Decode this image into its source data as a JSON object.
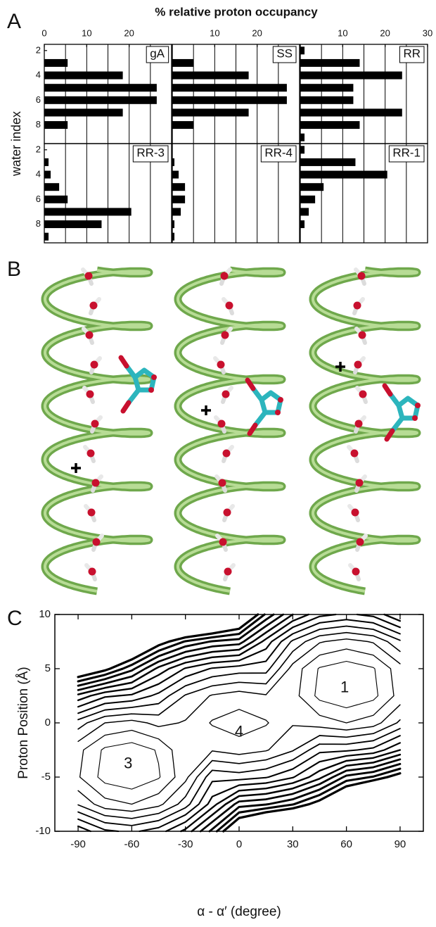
{
  "panel_labels": [
    "A",
    "B",
    "C"
  ],
  "panel_a": {
    "title": "% relative proton occupancy",
    "ylabel": "water index"
  },
  "chart_data": [
    {
      "type": "barh",
      "title": "gA",
      "y": [
        2,
        3,
        4,
        5,
        6,
        7,
        8,
        9
      ],
      "values": [
        0,
        5.5,
        18.5,
        26.5,
        26.5,
        18.5,
        5.5,
        0
      ],
      "color": "#000000",
      "xlim": [
        0,
        30
      ],
      "ylim": [
        9.5,
        1.5
      ],
      "xticks": [
        0,
        10,
        20
      ],
      "yticks": [
        2,
        4,
        6,
        8
      ],
      "xgrid": [
        5,
        10,
        15,
        20,
        25
      ]
    },
    {
      "type": "barh",
      "title": "SS",
      "y": [
        2,
        3,
        4,
        5,
        6,
        7,
        8,
        9
      ],
      "values": [
        0,
        5,
        18,
        27,
        27,
        18,
        5,
        0
      ],
      "color": "#000000",
      "xlim": [
        0,
        30
      ],
      "ylim": [
        9.5,
        1.5
      ],
      "xticks": [
        10,
        20
      ],
      "xgrid": [
        5,
        10,
        15,
        20,
        25
      ]
    },
    {
      "type": "barh",
      "title": "RR",
      "y": [
        2,
        3,
        4,
        5,
        6,
        7,
        8,
        9
      ],
      "values": [
        1,
        14,
        24,
        12.5,
        12.5,
        24,
        14,
        1
      ],
      "color": "#000000",
      "xlim": [
        0,
        30
      ],
      "ylim": [
        9.5,
        1.5
      ],
      "xticks": [
        10,
        20,
        30
      ],
      "xgrid": [
        5,
        10,
        15,
        20,
        25
      ]
    },
    {
      "type": "barh",
      "title": "RR-3",
      "y": [
        2,
        3,
        4,
        5,
        6,
        7,
        8,
        9
      ],
      "values": [
        0,
        1,
        1.5,
        3.5,
        5.5,
        20.5,
        13.5,
        1
      ],
      "color": "#000000",
      "xlim": [
        0,
        30
      ],
      "ylim": [
        9.5,
        1.5
      ],
      "yticks": [
        2,
        4,
        6,
        8
      ],
      "xgrid": [
        5,
        10,
        15,
        20,
        25
      ]
    },
    {
      "type": "barh",
      "title": "RR-4",
      "y": [
        2,
        3,
        4,
        5,
        6,
        7,
        8,
        9
      ],
      "values": [
        0,
        0.5,
        1.5,
        3,
        3,
        2,
        0.5,
        0.5
      ],
      "color": "#000000",
      "xlim": [
        0,
        30
      ],
      "ylim": [
        9.5,
        1.5
      ],
      "xgrid": [
        5,
        10,
        15,
        20,
        25
      ]
    },
    {
      "type": "barh",
      "title": "RR-1",
      "y": [
        2,
        3,
        4,
        5,
        6,
        7,
        8,
        9
      ],
      "values": [
        1,
        13,
        20.5,
        5.5,
        3.5,
        2,
        1,
        0
      ],
      "color": "#000000",
      "xlim": [
        0,
        30
      ],
      "ylim": [
        9.5,
        1.5
      ],
      "xgrid": [
        5,
        10,
        15,
        20,
        25
      ]
    },
    {
      "type": "contour",
      "xlabel": "α - α′ (degree)",
      "ylabel": "Proton Position (Å)",
      "color": "#000000",
      "x": [
        -90,
        -75,
        -60,
        -45,
        -30,
        -15,
        0,
        15,
        30,
        45,
        60,
        75,
        90
      ],
      "y": [
        10,
        7.5,
        5,
        2.5,
        0,
        -2.5,
        -5,
        -7.5,
        -10
      ],
      "z": [
        [
          20,
          20,
          20,
          20,
          18.9,
          17.9,
          15.8,
          11.8,
          9.0,
          7.3,
          6.8,
          7.3,
          9.0
        ],
        [
          20,
          19.5,
          16.3,
          13.7,
          11.9,
          10.9,
          10.5,
          7.6,
          4.8,
          3.1,
          2.6,
          3.1,
          4.8
        ],
        [
          14.9,
          13.4,
          11.3,
          8.7,
          6.9,
          5.9,
          5.5,
          5.4,
          2.6,
          0.9,
          0.4,
          0.9,
          2.6
        ],
        [
          8.7,
          7.2,
          6.8,
          5.7,
          3.9,
          2.9,
          2.5,
          2.9,
          2.4,
          0.7,
          0.2,
          0.7,
          2.4
        ],
        [
          4.5,
          3.0,
          2.6,
          3.3,
          2.9,
          1.9,
          1.5,
          1.9,
          2.9,
          2.5,
          2.0,
          2.5,
          4.2
        ],
        [
          2.3,
          0.8,
          0.4,
          1.1,
          2.9,
          2.9,
          2.5,
          2.9,
          3.9,
          5.7,
          5.8,
          6.3,
          8.0
        ],
        [
          2.1,
          0.6,
          0.2,
          0.9,
          2.7,
          5.7,
          5.5,
          5.9,
          6.9,
          8.7,
          11.3,
          12.1,
          13.8
        ],
        [
          3.9,
          2.4,
          2.0,
          2.7,
          4.5,
          7.5,
          10.5,
          10.9,
          11.9,
          13.7,
          16.3,
          19.5,
          20
        ],
        [
          7.7,
          6.2,
          5.8,
          6.5,
          8.3,
          11.3,
          15.4,
          17.9,
          18.9,
          20,
          20,
          20,
          20
        ]
      ],
      "levels": [
        1,
        2,
        3,
        4,
        5,
        6,
        7,
        8,
        9,
        10,
        11,
        12,
        13
      ],
      "xlim": [
        -103,
        103
      ],
      "ylim": [
        -10,
        10
      ],
      "xticks": [
        -90,
        -60,
        -30,
        0,
        30,
        60,
        90
      ],
      "yticks": [
        -10,
        -5,
        0,
        5,
        10
      ],
      "annotations": [
        {
          "text": "1",
          "x": 59,
          "y": 3.2
        },
        {
          "text": "4",
          "x": 0,
          "y": -0.9
        },
        {
          "text": "3",
          "x": -62,
          "y": -3.8
        }
      ]
    }
  ]
}
